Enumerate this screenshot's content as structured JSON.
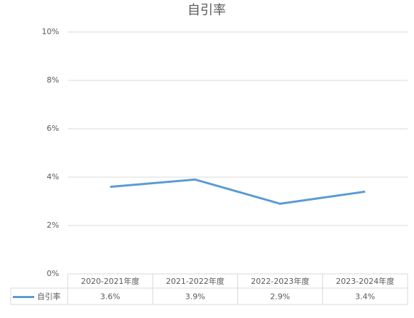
{
  "chart_data": {
    "type": "line",
    "title": "自引率",
    "categories": [
      "2020-2021年度",
      "2021-2022年度",
      "2022-2023年度",
      "2023-2024年度"
    ],
    "series": [
      {
        "name": "自引率",
        "color": "#5b9bd5",
        "values": [
          3.6,
          3.9,
          2.9,
          3.4
        ],
        "value_labels": [
          "3.6%",
          "3.9%",
          "2.9%",
          "3.4%"
        ]
      }
    ],
    "ylim": [
      0,
      10
    ],
    "yticks": [
      {
        "value": 0,
        "label": "0%"
      },
      {
        "value": 2,
        "label": "2%"
      },
      {
        "value": 4,
        "label": "4%"
      },
      {
        "value": 6,
        "label": "6%"
      },
      {
        "value": 8,
        "label": "8%"
      },
      {
        "value": 10,
        "label": "10%"
      }
    ],
    "grid": true
  }
}
